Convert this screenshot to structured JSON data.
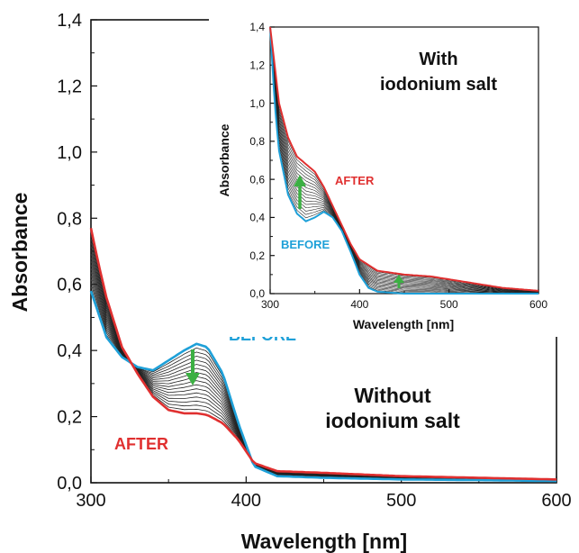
{
  "chart_data": [
    {
      "type": "line",
      "panel": "main",
      "xlabel": "Wavelength [nm]",
      "ylabel": "Absorbance",
      "xlim": [
        300,
        600
      ],
      "ylim": [
        0.0,
        1.4
      ],
      "x_ticks": [
        "300",
        "400",
        "500",
        "600"
      ],
      "y_ticks": [
        "0,0",
        "0,2",
        "0,4",
        "0,6",
        "0,8",
        "1,0",
        "1,2",
        "1,4"
      ],
      "grid": false,
      "annotations": [
        {
          "text": "BEFORE",
          "color": "#1ea0d8"
        },
        {
          "text": "AFTER",
          "color": "#e03030"
        },
        {
          "text": "Without",
          "color": "#111111"
        },
        {
          "text": "iodonium salt",
          "color": "#111111"
        }
      ],
      "arrow_color": "#3cb043",
      "series": [
        {
          "color": "#1ea0d8",
          "x": [
            300,
            310,
            320,
            330,
            340,
            350,
            360,
            368,
            375,
            385,
            395,
            405,
            420,
            450,
            500,
            550,
            600
          ],
          "y": [
            0.58,
            0.44,
            0.38,
            0.35,
            0.34,
            0.37,
            0.4,
            0.42,
            0.41,
            0.33,
            0.18,
            0.05,
            0.02,
            0.015,
            0.01,
            0.008,
            0.005
          ]
        },
        {
          "color": "#e03030",
          "x": [
            300,
            305,
            310,
            320,
            330,
            340,
            350,
            360,
            368,
            375,
            385,
            395,
            405,
            420,
            450,
            500,
            550,
            600
          ],
          "y": [
            0.77,
            0.66,
            0.56,
            0.41,
            0.33,
            0.26,
            0.22,
            0.21,
            0.21,
            0.205,
            0.18,
            0.13,
            0.06,
            0.035,
            0.03,
            0.02,
            0.015,
            0.01
          ]
        }
      ]
    },
    {
      "type": "line",
      "panel": "inset",
      "xlabel": "Wavelength [nm]",
      "ylabel": "Absorbance",
      "xlim": [
        300,
        600
      ],
      "ylim": [
        0.0,
        1.4
      ],
      "x_ticks": [
        "300",
        "400",
        "500",
        "600"
      ],
      "y_ticks": [
        "0,0",
        "0,2",
        "0,4",
        "0,6",
        "0,8",
        "1,0",
        "1,2",
        "1,4"
      ],
      "grid": false,
      "annotations": [
        {
          "text": "With",
          "color": "#111111"
        },
        {
          "text": "iodonium salt",
          "color": "#111111"
        },
        {
          "text": "AFTER",
          "color": "#e03030"
        },
        {
          "text": "BEFORE",
          "color": "#1ea0d8"
        }
      ],
      "arrow_color": "#3cb043",
      "series": [
        {
          "color": "#1ea0d8",
          "x": [
            300,
            305,
            310,
            320,
            330,
            340,
            350,
            360,
            370,
            380,
            390,
            400,
            410,
            420,
            450,
            500,
            600
          ],
          "y": [
            1.4,
            1.0,
            0.75,
            0.52,
            0.42,
            0.38,
            0.4,
            0.43,
            0.4,
            0.33,
            0.22,
            0.1,
            0.03,
            0.01,
            0.0,
            0.0,
            0.0
          ]
        },
        {
          "color": "#e03030",
          "x": [
            300,
            305,
            310,
            320,
            330,
            340,
            350,
            360,
            370,
            380,
            390,
            400,
            420,
            450,
            480,
            520,
            560,
            600
          ],
          "y": [
            1.4,
            1.2,
            1.0,
            0.82,
            0.72,
            0.68,
            0.64,
            0.56,
            0.46,
            0.36,
            0.26,
            0.18,
            0.12,
            0.1,
            0.09,
            0.06,
            0.03,
            0.015
          ]
        }
      ]
    }
  ]
}
